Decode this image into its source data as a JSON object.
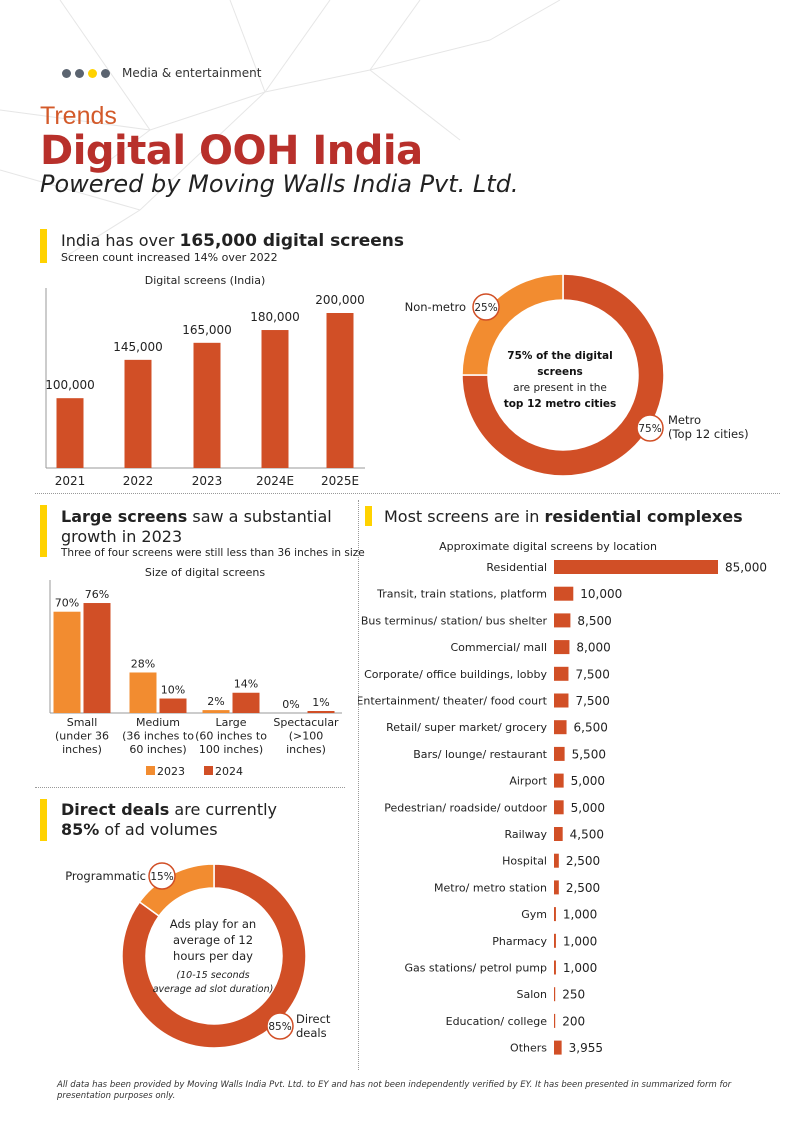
{
  "header": {
    "section": "Media & entertainment",
    "kicker": "Trends",
    "title": "Digital OOH India",
    "subtitle": "Powered by Moving Walls India Pvt. Ltd.",
    "dot_colors": [
      "#5b6470",
      "#5b6470",
      "#ffd200",
      "#5b6470"
    ]
  },
  "colors": {
    "primary": "#d14f26",
    "secondary": "#f28c30",
    "title": "#b8302b",
    "accent": "#ffd200"
  },
  "sections": {
    "screens": {
      "headline_pre": "India has over ",
      "headline_bold": "165,000 digital screens",
      "sub": "Screen count increased 14% over 2022"
    },
    "sizes": {
      "headline_bold": "Large screens",
      "headline_post": " saw a substantial growth in 2023",
      "sub": "Three of four screens were still less than 36 inches in size"
    },
    "deals": {
      "headline_bold": "Direct deals",
      "headline_post": " are currently",
      "headline_bold2": "85%",
      "headline_post2": " of ad volumes"
    },
    "location": {
      "headline_pre": "Most screens are in ",
      "headline_bold": "residential complexes"
    }
  },
  "chart_data": [
    {
      "type": "bar",
      "title": "Digital screens (India)",
      "categories": [
        "2021",
        "2022",
        "2023",
        "2024E",
        "2025E"
      ],
      "values": [
        100000,
        145000,
        165000,
        180000,
        200000
      ],
      "labels": [
        "100,000",
        "145,000",
        "165,000",
        "180,000",
        "200,000"
      ],
      "ylim": [
        65000,
        200000
      ],
      "xlabel": "",
      "ylabel": ""
    },
    {
      "type": "pie",
      "title": "",
      "slices": [
        {
          "name": "Metro",
          "name2": "(Top 12 cities)",
          "value": 75,
          "label": "75%"
        },
        {
          "name": "Non-metro",
          "value": 25,
          "label": "25%"
        }
      ],
      "center_text": {
        "bold1": "75% of the digital",
        "bold2": "screens",
        "normal": "are present in the",
        "bold3": "top 12 metro cities"
      }
    },
    {
      "type": "bar",
      "title": "Size of digital screens",
      "categories": [
        [
          "Small",
          "(under 36",
          "inches)"
        ],
        [
          "Medium",
          "(36 inches to",
          "60 inches)"
        ],
        [
          "Large",
          "(60 inches to",
          "100 inches)"
        ],
        [
          "Spectacular",
          "(>100",
          "inches)"
        ]
      ],
      "series": [
        {
          "name": "2023",
          "values": [
            70,
            28,
            2,
            0
          ],
          "labels": [
            "70%",
            "28%",
            "2%",
            "0%"
          ]
        },
        {
          "name": "2024",
          "values": [
            76,
            10,
            14,
            1
          ],
          "labels": [
            "76%",
            "10%",
            "14%",
            "1%"
          ]
        }
      ],
      "ylim": [
        0,
        80
      ],
      "legend": "bottom"
    },
    {
      "type": "pie",
      "title": "",
      "slices": [
        {
          "name": "Direct",
          "name2": "deals",
          "value": 85,
          "label": "85%"
        },
        {
          "name": "Programmatic",
          "value": 15,
          "label": "15%"
        }
      ],
      "center_text": {
        "l1": "Ads play for an",
        "l2": "average of 12",
        "l3": "hours per day",
        "i1": "(10-15 seconds",
        "i2": "average ad slot duration)"
      }
    },
    {
      "type": "bar",
      "orientation": "horizontal",
      "title": "Approximate digital screens by location",
      "categories": [
        "Residential",
        "Transit, train stations, platform",
        "Bus terminus/ station/ bus shelter",
        "Commercial/ mall",
        "Corporate/ office buildings, lobby",
        "Entertainment/ theater/ food court",
        "Retail/ super market/ grocery",
        "Bars/ lounge/ restaurant",
        "Airport",
        "Pedestrian/ roadside/ outdoor",
        "Railway",
        "Hospital",
        "Metro/ metro station",
        "Gym",
        "Pharmacy",
        "Gas stations/ petrol pump",
        "Salon",
        "Education/ college",
        "Others"
      ],
      "values": [
        85000,
        10000,
        8500,
        8000,
        7500,
        7500,
        6500,
        5500,
        5000,
        5000,
        4500,
        2500,
        2500,
        1000,
        1000,
        1000,
        250,
        200,
        3955
      ],
      "labels": [
        "85,000",
        "10,000",
        "8,500",
        "8,000",
        "7,500",
        "7,500",
        "6,500",
        "5,500",
        "5,000",
        "5,000",
        "4,500",
        "2,500",
        "2,500",
        "1,000",
        "1,000",
        "1,000",
        "250",
        "200",
        "3,955"
      ],
      "xlim": [
        0,
        85000
      ]
    }
  ],
  "footer": "All data has been provided by Moving Walls India Pvt. Ltd. to EY and has not been independently verified by EY. It has been presented in summarized form for presentation purposes only."
}
